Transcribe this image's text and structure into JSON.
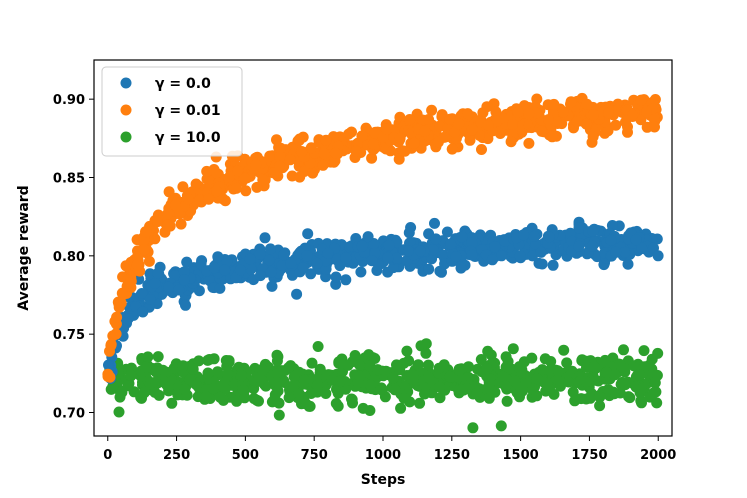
{
  "chart_data": {
    "type": "scatter",
    "title": "",
    "xlabel": "Steps",
    "ylabel": "Average reward",
    "xlim": [
      -50,
      2050
    ],
    "ylim": [
      0.685,
      0.925
    ],
    "xticks": [
      0,
      250,
      500,
      750,
      1000,
      1250,
      1500,
      1750,
      2000
    ],
    "xtick_labels": [
      "0",
      "250",
      "500",
      "750",
      "1000",
      "1250",
      "1500",
      "1750",
      "2000"
    ],
    "yticks": [
      0.7,
      0.75,
      0.8,
      0.85,
      0.9
    ],
    "ytick_labels": [
      "0.70",
      "0.75",
      "0.80",
      "0.85",
      "0.90"
    ],
    "grid": false,
    "legend_position": "top-left",
    "x_range": [
      0,
      2000
    ],
    "series": [
      {
        "name": "γ = 0.0",
        "color": "#1f77b4",
        "x": [
          0,
          25,
          50,
          75,
          100,
          150,
          200,
          250,
          300,
          400,
          500,
          600,
          750,
          1000,
          1250,
          1500,
          1750,
          2000
        ],
        "y": [
          0.718,
          0.745,
          0.757,
          0.764,
          0.77,
          0.776,
          0.78,
          0.783,
          0.786,
          0.79,
          0.793,
          0.795,
          0.798,
          0.801,
          0.804,
          0.806,
          0.808,
          0.81
        ],
        "spread": 0.0055
      },
      {
        "name": "γ = 0.01",
        "color": "#ff7f0e",
        "x": [
          0,
          25,
          50,
          75,
          100,
          150,
          200,
          250,
          300,
          400,
          500,
          600,
          750,
          1000,
          1250,
          1500,
          1750,
          2000
        ],
        "y": [
          0.722,
          0.752,
          0.772,
          0.785,
          0.795,
          0.812,
          0.823,
          0.831,
          0.837,
          0.846,
          0.853,
          0.859,
          0.866,
          0.875,
          0.881,
          0.886,
          0.89,
          0.893
        ],
        "spread": 0.0055
      },
      {
        "name": "γ = 10.0",
        "color": "#2ca02c",
        "x": [
          0,
          2000
        ],
        "y": [
          0.721,
          0.722
        ],
        "spread": 0.0075
      }
    ],
    "legend": [
      {
        "label": "γ = 0.0",
        "color": "#1f77b4"
      },
      {
        "label": "γ = 0.01",
        "color": "#ff7f0e"
      },
      {
        "label": "γ = 10.0",
        "color": "#2ca02c"
      }
    ]
  }
}
